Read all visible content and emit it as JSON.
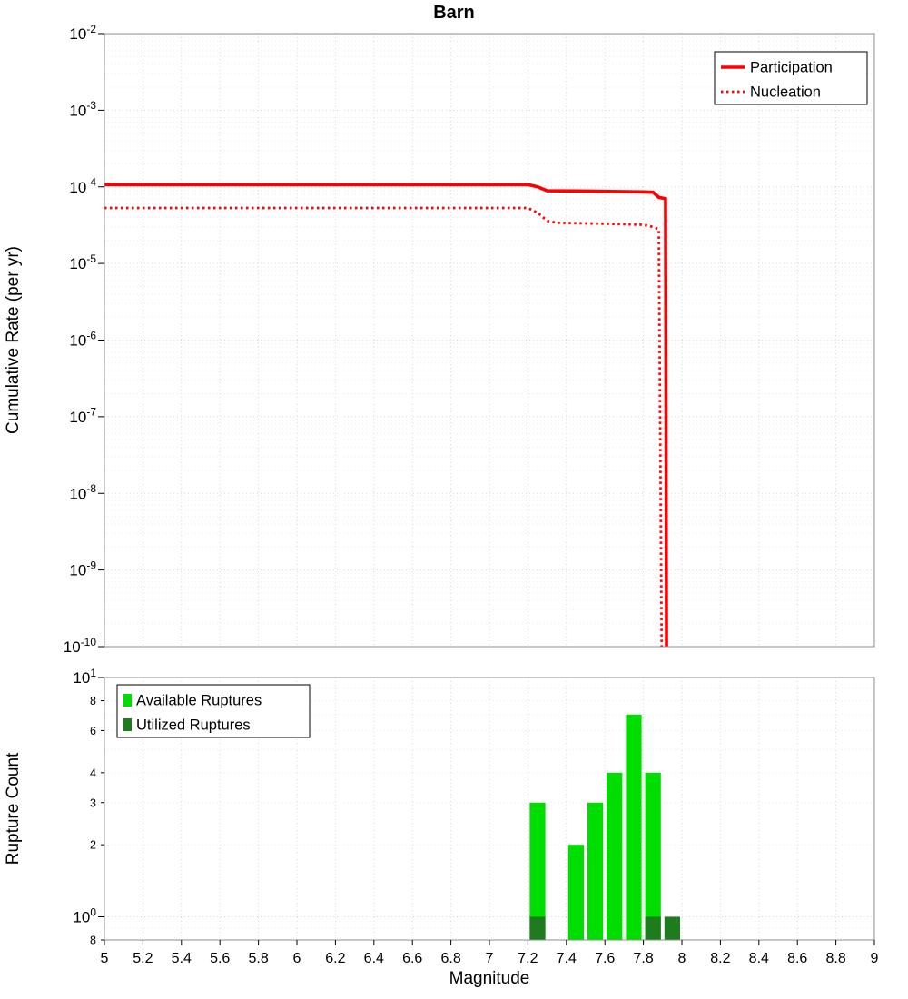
{
  "title": "Barn",
  "chart_data": [
    {
      "type": "line",
      "title": "Barn",
      "xlabel": "",
      "ylabel": "Cumulative Rate (per yr)",
      "x_range": [
        5,
        9
      ],
      "y_scale": "log",
      "y_range": [
        1e-10,
        0.01
      ],
      "y_range_exponents": [
        -10,
        -2
      ],
      "grid": true,
      "legend_position": "top-right",
      "x_tick_labels": [
        "5",
        "5.2",
        "5.4",
        "5.6",
        "5.8",
        "6",
        "6.2",
        "6.4",
        "6.6",
        "6.8",
        "7",
        "7.2",
        "7.4",
        "7.6",
        "7.8",
        "8",
        "8.2",
        "8.4",
        "8.6",
        "8.8",
        "9"
      ],
      "y_tick_exponents": [
        -2,
        -3,
        -4,
        -5,
        -6,
        -7,
        -8,
        -9,
        -10
      ],
      "series": [
        {
          "name": "Participation",
          "color": "#ff0000",
          "line_style": "solid",
          "points": [
            [
              5,
              0.000107
            ],
            [
              7.2,
              0.000107
            ],
            [
              7.25,
              0.0001
            ],
            [
              7.3,
              8.9e-05
            ],
            [
              7.5,
              8.8e-05
            ],
            [
              7.8,
              8.6e-05
            ],
            [
              7.85,
              8.5e-05
            ],
            [
              7.88,
              7.3e-05
            ],
            [
              7.915,
              7e-05
            ],
            [
              7.92,
              1e-10
            ]
          ]
        },
        {
          "name": "Nucleation",
          "color": "#ff0000",
          "line_style": "dotted",
          "points": [
            [
              5,
              5.3e-05
            ],
            [
              7.2,
              5.3e-05
            ],
            [
              7.25,
              4.6e-05
            ],
            [
              7.3,
              3.6e-05
            ],
            [
              7.35,
              3.4e-05
            ],
            [
              7.6,
              3.3e-05
            ],
            [
              7.8,
              3.2e-05
            ],
            [
              7.85,
              3e-05
            ],
            [
              7.88,
              2.8e-05
            ],
            [
              7.895,
              1e-10
            ]
          ]
        }
      ]
    },
    {
      "type": "bar",
      "xlabel": "Magnitude",
      "ylabel": "Rupture Count",
      "x_range": [
        5,
        9
      ],
      "y_scale": "log",
      "y_range": [
        0.8,
        10
      ],
      "bin_width": 0.1,
      "grid": true,
      "legend_position": "top-left",
      "y_major_tick_exponents": [
        1,
        0
      ],
      "y_minor_tick_labels": [
        {
          "value": 8,
          "label": "8"
        },
        {
          "value": 6,
          "label": "6"
        },
        {
          "value": 4,
          "label": "4"
        },
        {
          "value": 3,
          "label": "3"
        },
        {
          "value": 2,
          "label": "2"
        },
        {
          "value": 0.8,
          "label": "8"
        }
      ],
      "series": [
        {
          "name": "Available Ruptures",
          "color": "#00dd00",
          "bins": [
            {
              "x0": 7.2,
              "count": 3
            },
            {
              "x0": 7.4,
              "count": 2
            },
            {
              "x0": 7.5,
              "count": 3
            },
            {
              "x0": 7.6,
              "count": 4
            },
            {
              "x0": 7.7,
              "count": 7
            },
            {
              "x0": 7.8,
              "count": 4
            }
          ]
        },
        {
          "name": "Utilized Ruptures",
          "color": "#1e7b1e",
          "bins": [
            {
              "x0": 7.2,
              "count": 1
            },
            {
              "x0": 7.8,
              "count": 1
            },
            {
              "x0": 7.9,
              "count": 1
            }
          ]
        }
      ]
    }
  ]
}
